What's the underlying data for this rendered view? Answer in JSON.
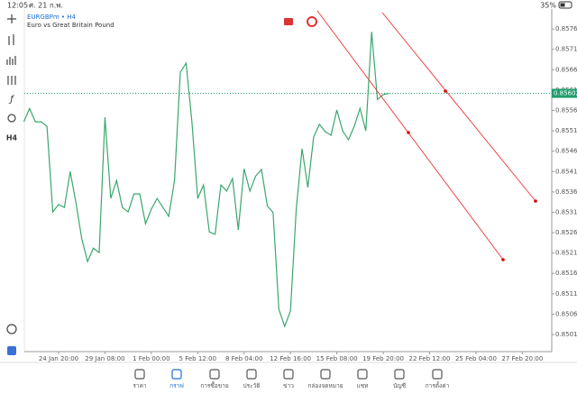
{
  "status_bar": {
    "time": "12:05",
    "date": "ศ. 21 ก.พ.",
    "battery": "35%"
  },
  "header": {
    "title": "EURGBPm • H4",
    "description": "Euro vs Great Britain Pound"
  },
  "toolbar": {
    "timeframe": "H4"
  },
  "chart_data": {
    "type": "line",
    "color": "#3aa76d",
    "categories": [
      null,
      null,
      null,
      null,
      null,
      null,
      "24 Jan 20:00",
      null,
      null,
      null,
      null,
      null,
      null,
      null,
      "29 Jan 08:00",
      null,
      null,
      null,
      null,
      null,
      null,
      null,
      "1 Feb 00:00",
      null,
      null,
      null,
      null,
      null,
      null,
      null,
      "5 Feb 12:00",
      null,
      null,
      null,
      null,
      null,
      null,
      null,
      "8 Feb 04:00",
      null,
      null,
      null,
      null,
      null,
      null,
      null,
      "12 Feb 16:00",
      null,
      null,
      null,
      null,
      null,
      null,
      null,
      "15 Feb 08:00",
      null,
      null,
      null,
      null,
      null,
      null,
      null,
      "19 Feb 20:00",
      null,
      null,
      null,
      null,
      null,
      null,
      null,
      "22 Feb 12:00",
      null,
      null,
      null,
      null,
      null,
      null,
      null,
      "25 Feb 04:00",
      null,
      null,
      null,
      null,
      null,
      null,
      null,
      "27 Feb 20:00"
    ],
    "values": [
      0.85532,
      0.85565,
      0.85532,
      0.85532,
      0.85521,
      0.85311,
      0.85329,
      0.85322,
      0.8541,
      0.85333,
      0.85245,
      0.85189,
      0.85222,
      0.85211,
      0.85543,
      0.85344,
      0.85388,
      0.85322,
      0.85311,
      0.85355,
      0.85355,
      0.85282,
      0.85318,
      0.85344,
      0.85322,
      0.853,
      0.85388,
      0.85654,
      0.85676,
      0.85532,
      0.85344,
      0.85377,
      0.85262,
      0.85256,
      0.85377,
      0.85362,
      0.85393,
      0.85267,
      0.85417,
      0.85362,
      0.85399,
      0.85415,
      0.85326,
      0.85309,
      0.85072,
      0.8503,
      0.85068,
      0.85318,
      0.85466,
      0.85371,
      0.85495,
      0.85526,
      0.85508,
      0.85499,
      0.85561,
      0.8551,
      0.85488,
      0.85521,
      0.85565,
      0.8551,
      0.85753,
      0.85587,
      0.85599,
      0.85602,
      null,
      null,
      null,
      null,
      null,
      null,
      null,
      null,
      null,
      null,
      null,
      null,
      null,
      null,
      null,
      null,
      null,
      null,
      null,
      null,
      null,
      null,
      null
    ],
    "ylim": [
      0.84968,
      0.85809
    ],
    "yticks": [
      {
        "value": 0.8501,
        "label": "0.85010"
      },
      {
        "value": 0.8506,
        "label": "0.85060"
      },
      {
        "value": 0.8511,
        "label": "0.85110"
      },
      {
        "value": 0.8516,
        "label": "0.85160"
      },
      {
        "value": 0.8521,
        "label": "0.85210"
      },
      {
        "value": 0.8526,
        "label": "0.85260"
      },
      {
        "value": 0.8531,
        "label": "0.85310"
      },
      {
        "value": 0.8536,
        "label": "0.85360"
      },
      {
        "value": 0.8541,
        "label": "0.85410"
      },
      {
        "value": 0.8546,
        "label": "0.85460"
      },
      {
        "value": 0.8551,
        "label": "0.85510"
      },
      {
        "value": 0.8556,
        "label": "0.85560"
      },
      {
        "value": 0.8561,
        "label": "0.85610"
      },
      {
        "value": 0.8566,
        "label": "0.85660"
      },
      {
        "value": 0.8571,
        "label": "0.85710"
      },
      {
        "value": 0.8576,
        "label": "0.85760"
      }
    ],
    "current_price": 0.85602,
    "current_price_color": "#1f9d6b"
  },
  "tabs": [
    {
      "label": "ราคา",
      "active": false
    },
    {
      "label": "กราฟ",
      "active": true
    },
    {
      "label": "การซื้อขาย",
      "active": false
    },
    {
      "label": "ประวัติ",
      "active": false
    },
    {
      "label": "ข่าว",
      "active": false
    },
    {
      "label": "กล่องจดหมาย",
      "active": false
    },
    {
      "label": "แชท",
      "active": false
    },
    {
      "label": "บัญชี",
      "active": false
    },
    {
      "label": "การตั้งค่า",
      "active": false
    }
  ]
}
